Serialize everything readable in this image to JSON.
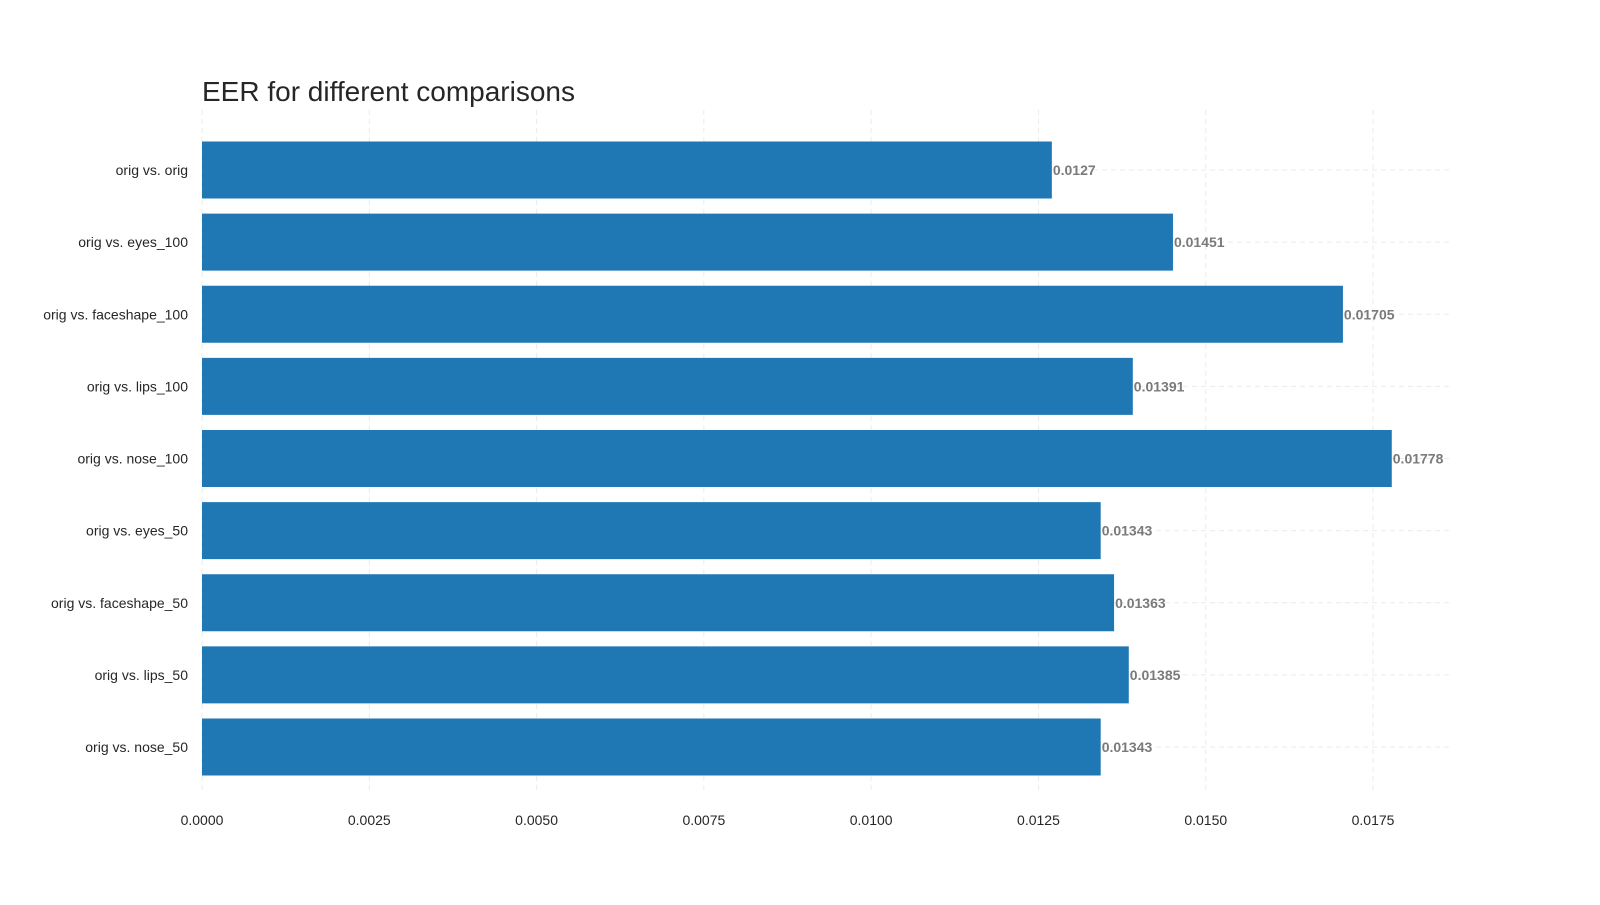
{
  "chart_data": {
    "type": "bar",
    "orientation": "horizontal",
    "title": "EER for different comparisons",
    "xlabel": "",
    "ylabel": "",
    "categories": [
      "orig vs. orig",
      "orig vs. eyes_100",
      "orig vs. faceshape_100",
      "orig vs. lips_100",
      "orig vs. nose_100",
      "orig vs. eyes_50",
      "orig vs. faceshape_50",
      "orig vs. lips_50",
      "orig vs. nose_50"
    ],
    "values": [
      0.0127,
      0.01451,
      0.01705,
      0.01391,
      0.01778,
      0.01343,
      0.01363,
      0.01385,
      0.01343
    ],
    "value_labels": [
      "0.0127",
      "0.01451",
      "0.01705",
      "0.01391",
      "0.01778",
      "0.01343",
      "0.01363",
      "0.01385",
      "0.01343"
    ],
    "xlim": [
      0,
      0.01868
    ],
    "xticks": [
      0,
      0.0025,
      0.005,
      0.0075,
      0.01,
      0.0125,
      0.015,
      0.0175
    ],
    "xtick_labels": [
      "0.0000",
      "0.0025",
      "0.0050",
      "0.0075",
      "0.0100",
      "0.0125",
      "0.0150",
      "0.0175"
    ],
    "grid": true,
    "legend": "none",
    "colors": {
      "bar": "#1f77b4",
      "value_label": "#7a7a7a",
      "title": "#262626",
      "tick_label": "#262626",
      "grid": "#ebebeb"
    }
  }
}
